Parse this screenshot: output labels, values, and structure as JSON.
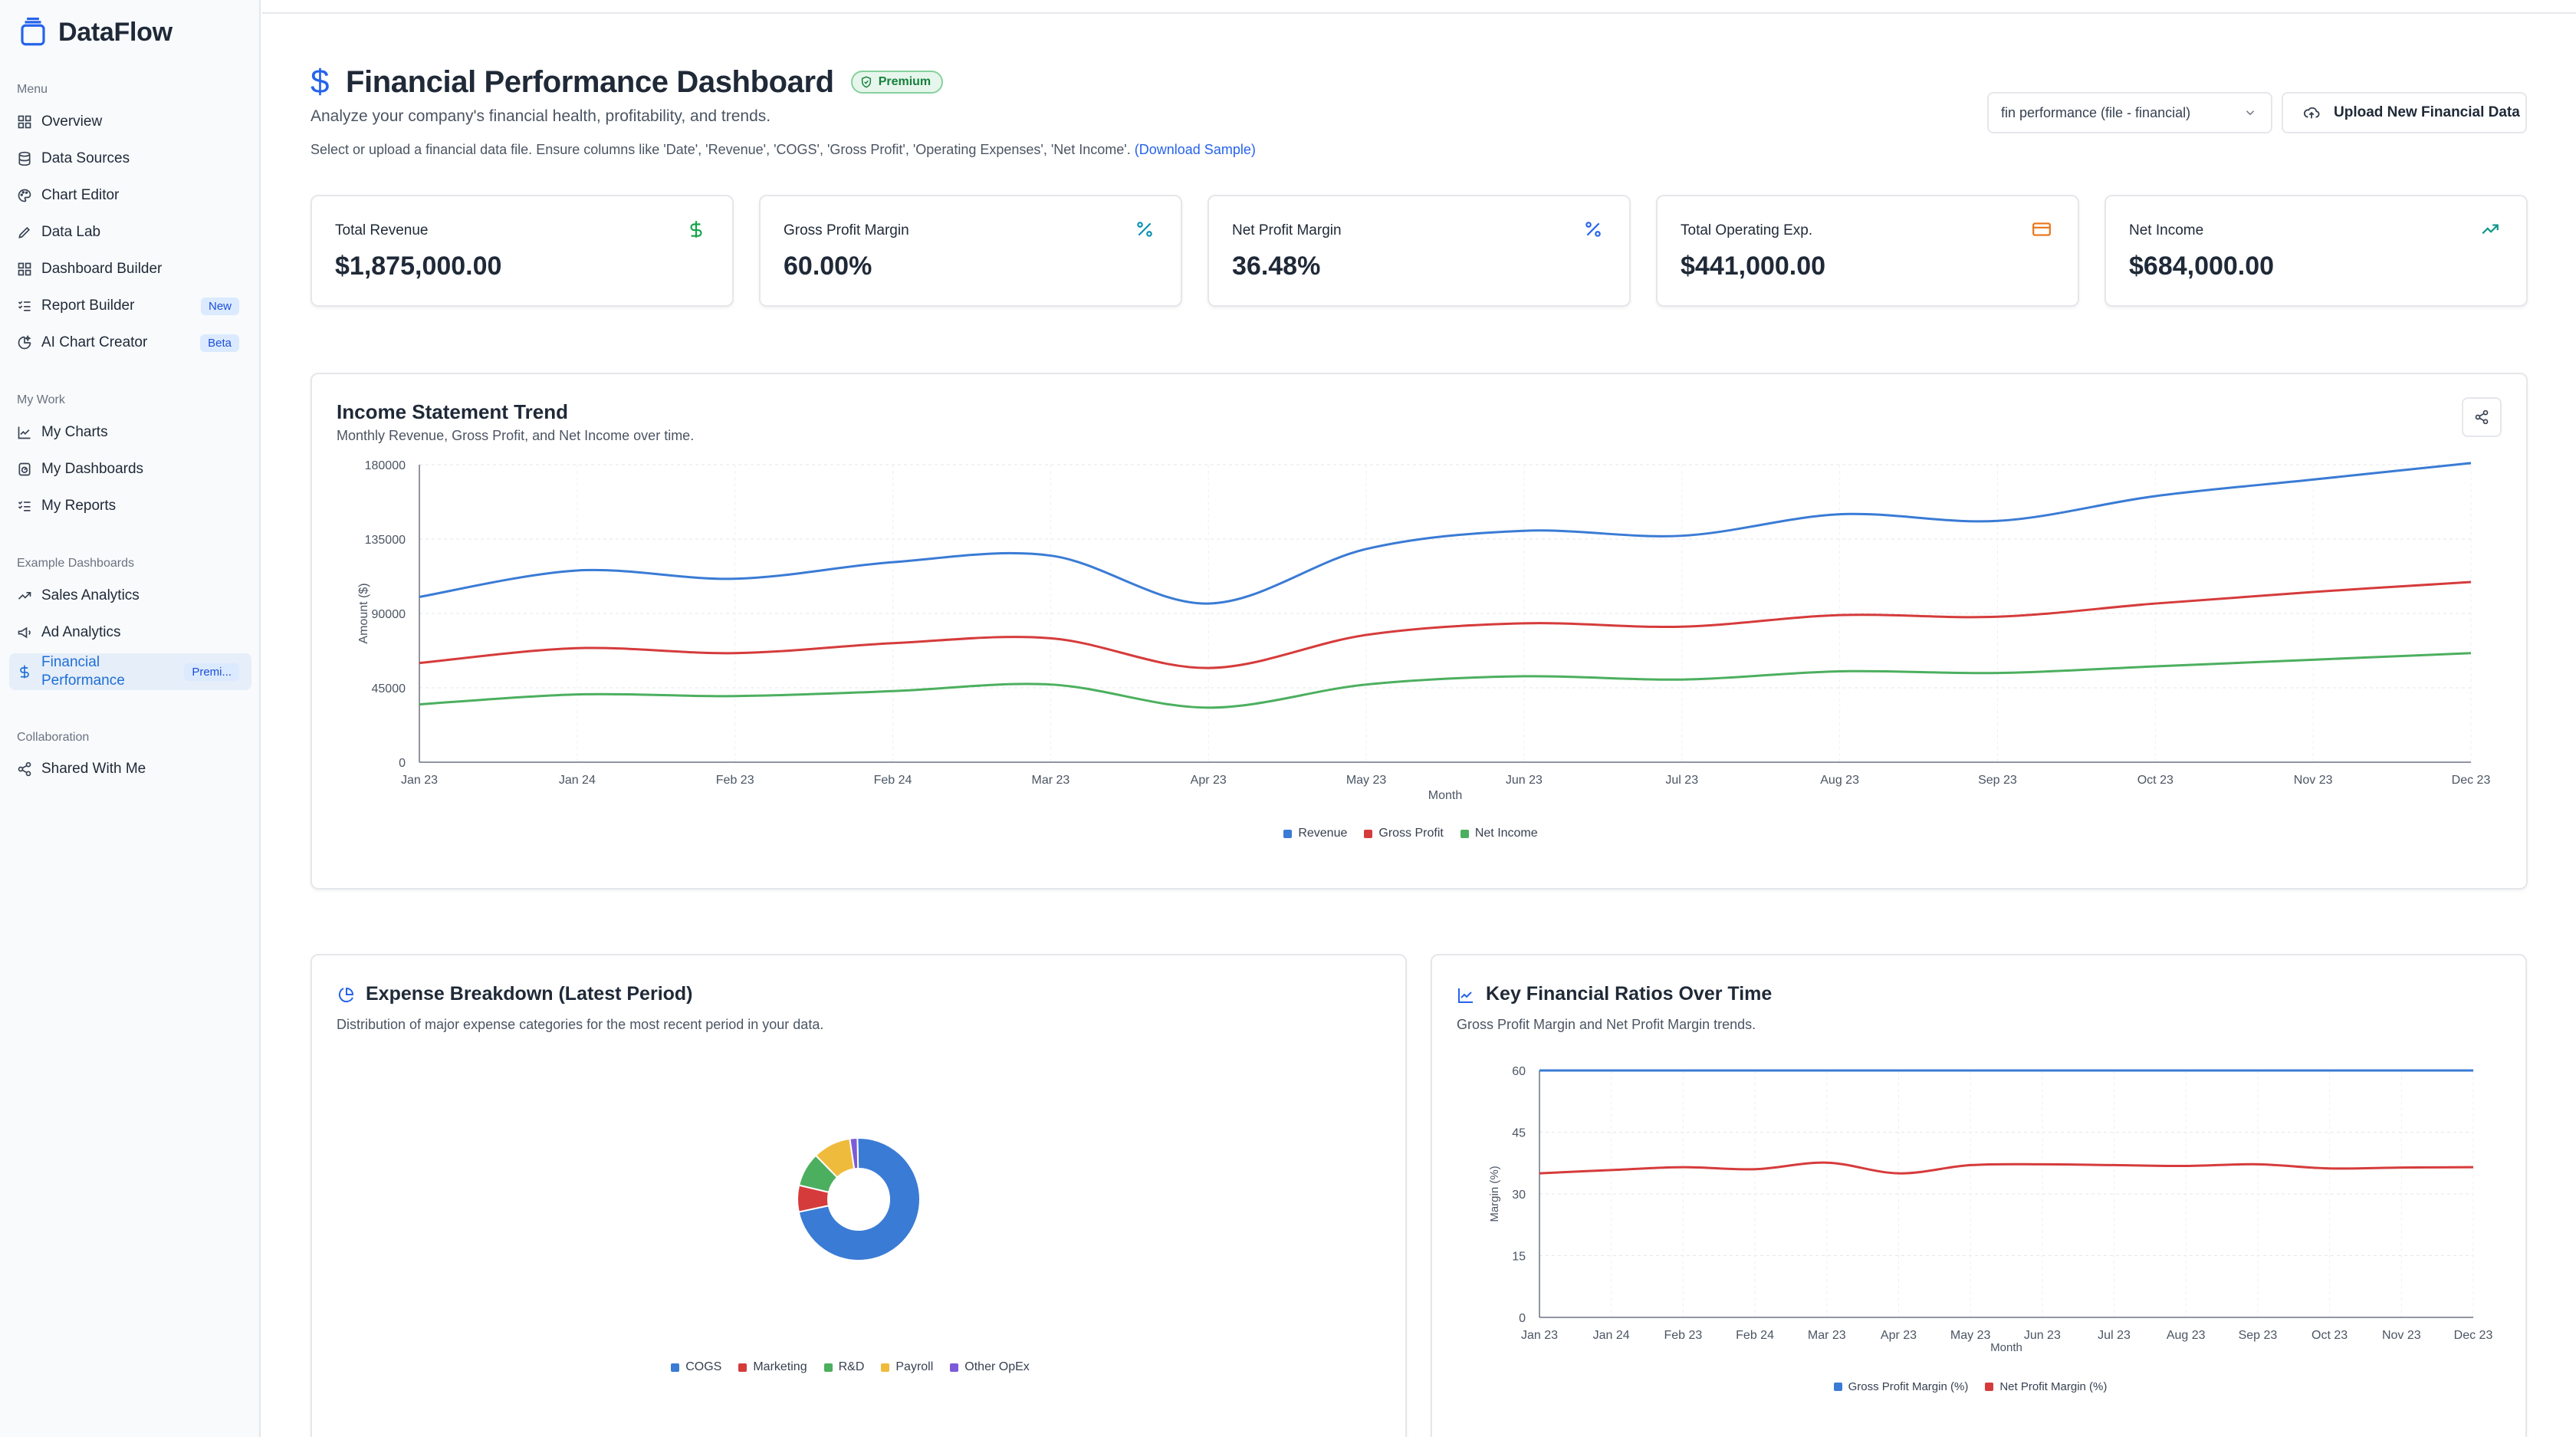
{
  "app": {
    "name": "DataFlow"
  },
  "sidebar": {
    "sections": {
      "menu": "Menu",
      "my_work": "My Work",
      "examples": "Example Dashboards",
      "collaboration": "Collaboration"
    },
    "menu": [
      {
        "label": "Overview"
      },
      {
        "label": "Data Sources"
      },
      {
        "label": "Chart Editor"
      },
      {
        "label": "Data Lab"
      },
      {
        "label": "Dashboard Builder"
      },
      {
        "label": "Report Builder",
        "badge": "New"
      },
      {
        "label": "AI Chart Creator",
        "badge": "Beta"
      }
    ],
    "my_work": [
      {
        "label": "My Charts"
      },
      {
        "label": "My Dashboards"
      },
      {
        "label": "My Reports"
      }
    ],
    "examples": [
      {
        "label": "Sales Analytics"
      },
      {
        "label": "Ad Analytics"
      },
      {
        "label": "Financial Performance",
        "badge": "Premi..."
      }
    ],
    "collaboration": [
      {
        "label": "Shared With Me"
      }
    ]
  },
  "header": {
    "title": "Financial Performance Dashboard",
    "premium_badge": "Premium",
    "subtitle": "Analyze your company's financial health, profitability, and trends.",
    "hint": "Select or upload a financial data file. Ensure columns like 'Date', 'Revenue', 'COGS', 'Gross Profit', 'Operating Expenses', 'Net Income'.",
    "download_link": "(Download Sample)",
    "file_select_value": "fin performance (file - financial)",
    "upload_button": "Upload New Financial Data"
  },
  "kpis": [
    {
      "label": "Total Revenue",
      "value": "$1,875,000.00",
      "icon": "dollar-icon",
      "color": "#16a34a"
    },
    {
      "label": "Gross Profit Margin",
      "value": "60.00%",
      "icon": "percent-icon",
      "color": "#0891b2"
    },
    {
      "label": "Net Profit Margin",
      "value": "36.48%",
      "icon": "percent-icon",
      "color": "#2563eb"
    },
    {
      "label": "Total Operating Exp.",
      "value": "$441,000.00",
      "icon": "credit-card-icon",
      "color": "#ea7317"
    },
    {
      "label": "Net Income",
      "value": "$684,000.00",
      "icon": "trending-up-icon",
      "color": "#0d9488"
    }
  ],
  "income_panel": {
    "title": "Income Statement Trend",
    "description": "Monthly Revenue, Gross Profit, and Net Income over time."
  },
  "expense_panel": {
    "title": "Expense Breakdown (Latest Period)",
    "description": "Distribution of major expense categories for the most recent period in your data."
  },
  "ratios_panel": {
    "title": "Key Financial Ratios Over Time",
    "description": "Gross Profit Margin and Net Profit Margin trends."
  },
  "chart_data": [
    {
      "type": "line",
      "title": "Income Statement Trend",
      "xlabel": "Month",
      "ylabel": "Amount ($)",
      "ylim": [
        0,
        180000
      ],
      "yticks": [
        0,
        45000,
        90000,
        135000,
        180000
      ],
      "ytick_labels": [
        "0",
        "45000",
        "90000",
        "135000",
        "180000"
      ],
      "categories": [
        "Jan 23",
        "Jan 24",
        "Feb 23",
        "Feb 24",
        "Mar 23",
        "Apr 23",
        "May 23",
        "Jun 23",
        "Jul 23",
        "Aug 23",
        "Sep 23",
        "Oct 23",
        "Nov 23",
        "Dec 23"
      ],
      "series": [
        {
          "name": "Revenue",
          "color": "#3a7bd5",
          "values": [
            100000,
            116000,
            111000,
            121000,
            125000,
            96000,
            129000,
            140000,
            137000,
            150000,
            146000,
            161000,
            171000,
            181000
          ]
        },
        {
          "name": "Gross Profit",
          "color": "#d63b3b",
          "values": [
            60000,
            69000,
            66000,
            72000,
            75000,
            57000,
            77000,
            84000,
            82000,
            89000,
            88000,
            96000,
            103000,
            109000
          ]
        },
        {
          "name": "Net Income",
          "color": "#4caf5f",
          "values": [
            35000,
            41000,
            40000,
            43000,
            47000,
            33000,
            47000,
            52000,
            50000,
            55000,
            54000,
            58000,
            62000,
            66000
          ]
        }
      ]
    },
    {
      "type": "pie",
      "donut": true,
      "title": "Expense Breakdown (Latest Period)",
      "categories": [
        "COGS",
        "Marketing",
        "R&D",
        "Payroll",
        "Other OpEx"
      ],
      "values": [
        72,
        7,
        9,
        10,
        2
      ],
      "colors": [
        "#3a7bd5",
        "#d63b3b",
        "#4caf5f",
        "#efbb3c",
        "#7c5bd6"
      ]
    },
    {
      "type": "line",
      "title": "Key Financial Ratios Over Time",
      "xlabel": "Month",
      "ylabel": "Margin (%)",
      "ylim": [
        0,
        60
      ],
      "yticks": [
        0,
        15,
        30,
        45,
        60
      ],
      "ytick_labels": [
        "0",
        "15",
        "30",
        "45",
        "60"
      ],
      "categories": [
        "Jan 23",
        "Jan 24",
        "Feb 23",
        "Feb 24",
        "Mar 23",
        "Apr 23",
        "May 23",
        "Jun 23",
        "Jul 23",
        "Aug 23",
        "Sep 23",
        "Oct 23",
        "Nov 23",
        "Dec 23"
      ],
      "series": [
        {
          "name": "Gross Profit Margin (%)",
          "color": "#3a7bd5",
          "values": [
            60,
            60,
            60,
            60,
            60,
            60,
            60,
            60,
            60,
            60,
            60,
            60,
            60,
            60
          ]
        },
        {
          "name": "Net Profit Margin (%)",
          "color": "#d63b3b",
          "values": [
            35,
            35.8,
            36.5,
            36,
            37.6,
            35,
            37,
            37.2,
            37,
            36.8,
            37.2,
            36.2,
            36.4,
            36.5
          ]
        }
      ]
    }
  ]
}
